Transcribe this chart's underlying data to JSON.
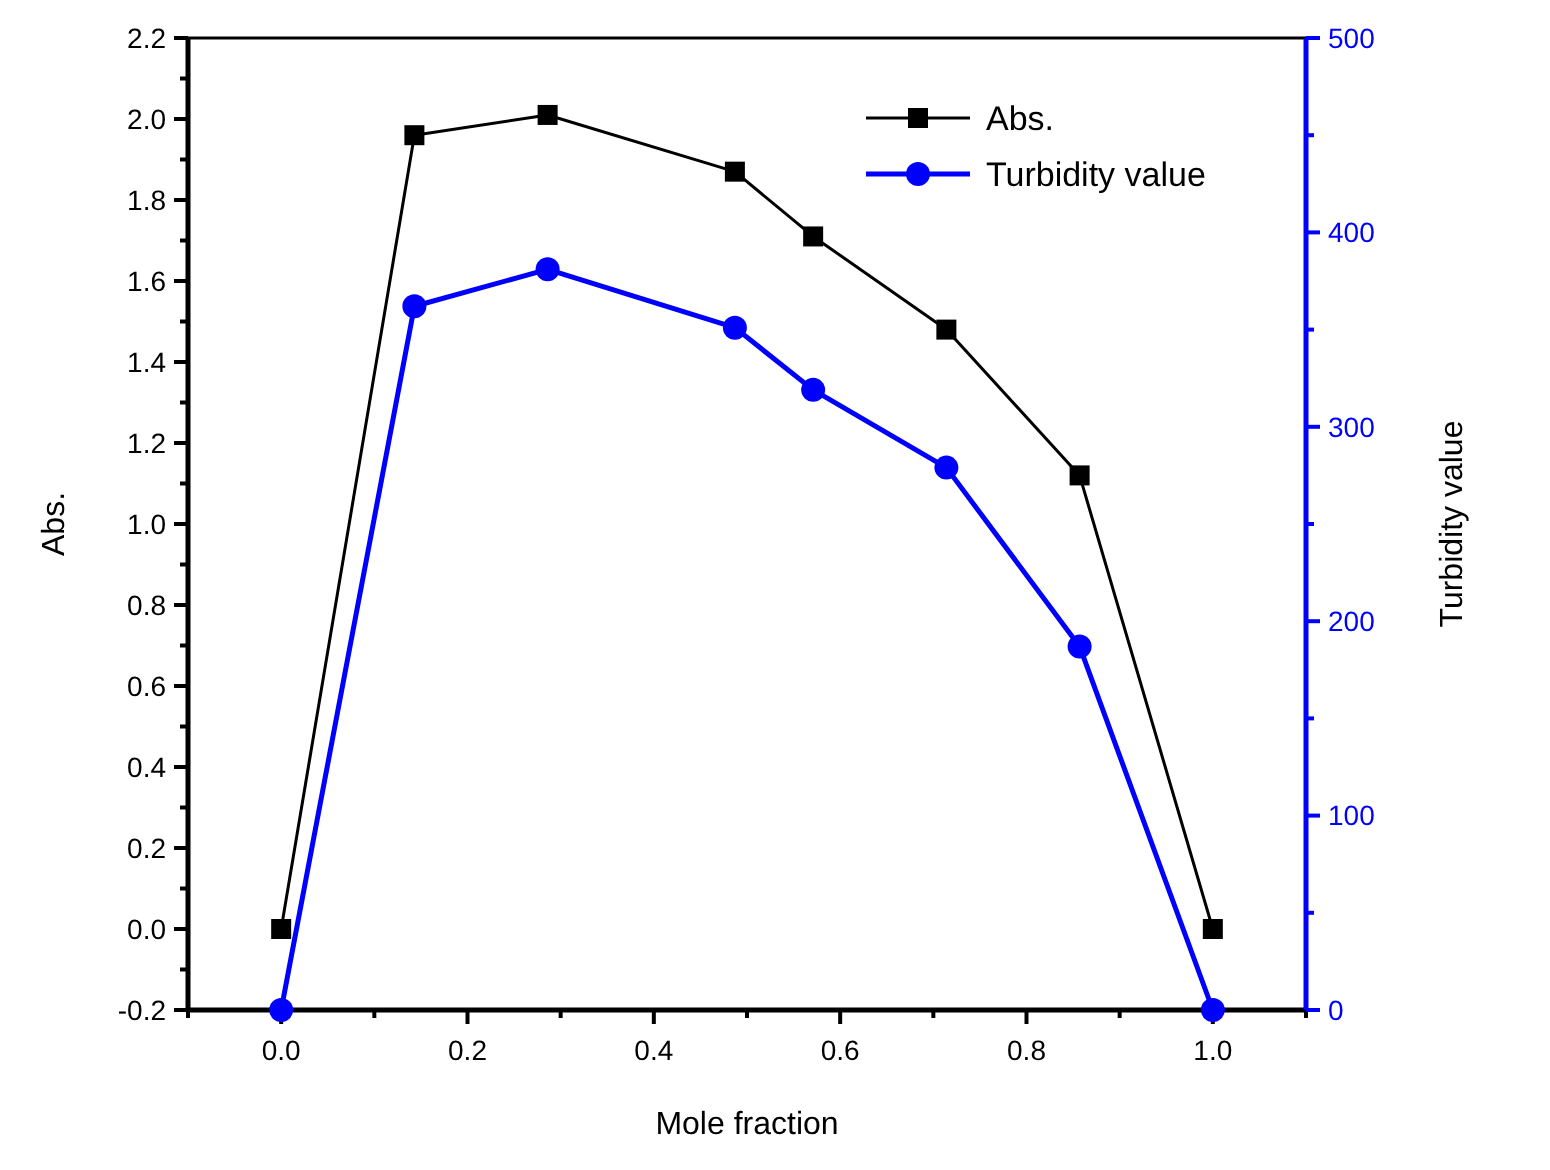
{
  "chart_data": {
    "type": "line",
    "xlabel": "Mole fraction",
    "ylabel": "Abs.",
    "y2label": "Turbidity value",
    "x": [
      0,
      0.143,
      0.286,
      0.487,
      0.571,
      0.714,
      0.857,
      1
    ],
    "series": [
      {
        "name": "Abs.",
        "color": "#000000",
        "marker": "square",
        "values": [
          0,
          1.96,
          2.01,
          1.87,
          1.71,
          1.48,
          1.12,
          0
        ]
      },
      {
        "name": "Turbidity value",
        "color": "#0000ff",
        "marker": "circle",
        "axis": "y2",
        "values": [
          0,
          362,
          381,
          351,
          319,
          279,
          187,
          0
        ]
      }
    ],
    "xlim": [
      -0.1,
      1.1
    ],
    "xticks": [
      {
        "value": -0.1,
        "label": null
      },
      "0.0",
      {
        "value": 0.1,
        "label": null
      },
      {
        "value": 0.2,
        "label": "0.2"
      },
      {
        "value": 0.3,
        "label": null
      },
      {
        "value": 0.4,
        "label": "0.4"
      },
      {
        "value": 0.5,
        "label": null
      },
      {
        "value": 0.6,
        "label": "0.6"
      },
      {
        "value": 0.7,
        "label": null
      },
      {
        "value": 0.8,
        "label": "0.8"
      },
      {
        "value": 0.9,
        "label": null
      },
      {
        "value": 1,
        "label": "1.0"
      },
      {
        "value": 1.1,
        "label": null
      }
    ],
    "ylim": [
      -0.2,
      2.2
    ],
    "yticks": [
      {
        "value": -0.2,
        "label": "-0.2"
      },
      {
        "value": -0.1,
        "label": null
      },
      {
        "value": 0,
        "label": "0.0"
      },
      {
        "value": 0.1,
        "label": null
      },
      {
        "value": 0.2,
        "label": "0.2"
      },
      {
        "value": 0.3,
        "label": null
      },
      {
        "value": 0.4,
        "label": "0.4"
      },
      {
        "value": 0.5,
        "label": null
      },
      {
        "value": 0.6,
        "label": "0.6"
      },
      {
        "value": 0.7,
        "label": null
      },
      {
        "value": 0.8,
        "label": "0.8"
      },
      {
        "value": 0.9,
        "label": null
      },
      {
        "value": 1,
        "label": "1.0"
      },
      {
        "value": 1.1,
        "label": null
      },
      {
        "value": 1.2,
        "label": "1.2"
      },
      {
        "value": 1.3,
        "label": null
      },
      {
        "value": 1.4,
        "label": "1.4"
      },
      {
        "value": 1.5,
        "label": null
      },
      {
        "value": 1.6,
        "label": "1.6"
      },
      {
        "value": 1.7,
        "label": null
      },
      {
        "value": 1.8,
        "label": "1.8"
      },
      {
        "value": 1.9,
        "label": null
      },
      {
        "value": 2,
        "label": "2.0"
      },
      {
        "value": 2.1,
        "label": null
      },
      {
        "value": 2.2,
        "label": "2.2"
      }
    ],
    "y2lim": [
      0,
      500
    ],
    "y2ticks": [
      0,
      {
        "value": 50,
        "label": null
      },
      100,
      {
        "value": 150,
        "label": null
      },
      200,
      {
        "value": 250,
        "label": null
      },
      300,
      {
        "value": 350,
        "label": null
      },
      400,
      {
        "value": 450,
        "label": null
      },
      500
    ],
    "legend": "top right",
    "grid": false,
    "line_style": "solid"
  }
}
